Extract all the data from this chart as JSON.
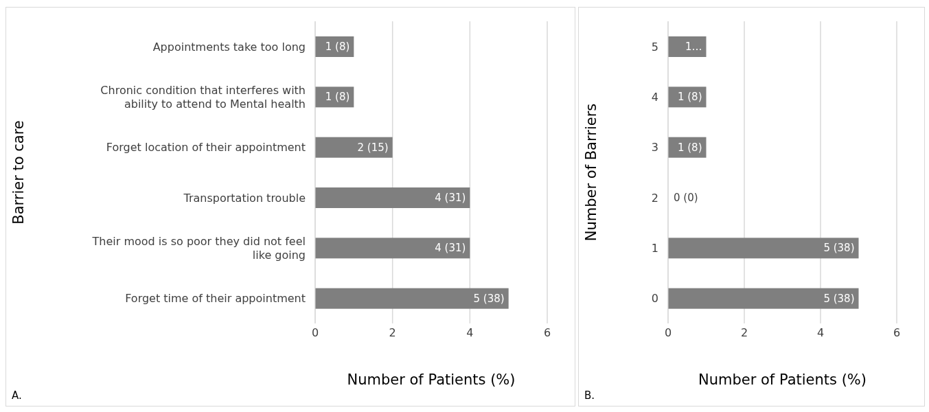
{
  "chart_data": [
    {
      "type": "bar",
      "orientation": "horizontal",
      "categories": [
        "Appointments take too long",
        "Chronic condition that interferes with ability to attend to Mental health",
        "Forget location of their appointment",
        "Transportation trouble",
        "Their mood is so poor they did not feel like going",
        "Forget time of their appointment"
      ],
      "values": [
        1,
        1,
        2,
        4,
        4,
        5
      ],
      "color": "#7f7f7f",
      "value_labels": [
        "1 (8)",
        "1 (8)",
        "2 (15)",
        "4 (31)",
        "4 (31)",
        "5 (38)"
      ],
      "xlim": [
        0,
        6
      ],
      "xticks": [
        0,
        2,
        4,
        6
      ],
      "grid": "x",
      "xlabel": "Number of Patients (%)",
      "ylabel": "Barrier to care",
      "annotations": [
        "A."
      ]
    },
    {
      "type": "bar",
      "orientation": "horizontal",
      "categories": [
        "5",
        "4",
        "3",
        "2",
        "1",
        "0"
      ],
      "values": [
        1,
        1,
        1,
        0,
        5,
        5
      ],
      "color": "#7f7f7f",
      "value_labels": [
        "1…",
        "1 (8)",
        "1 (8)",
        "0 (0)",
        "5 (38)",
        "5 (38)"
      ],
      "xlim": [
        0,
        6
      ],
      "xticks": [
        0,
        2,
        4,
        6
      ],
      "grid": "x",
      "xlabel": "Number of Patients (%)",
      "ylabel": "Number of Barriers",
      "annotations": [
        "B."
      ]
    }
  ]
}
